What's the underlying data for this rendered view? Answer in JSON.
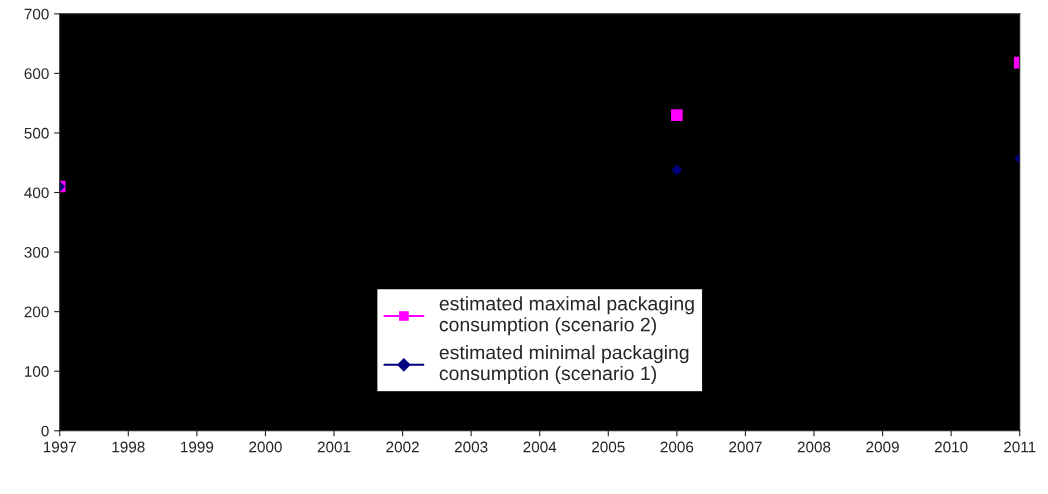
{
  "chart_data": {
    "type": "scatter",
    "x": [
      1997,
      2006,
      2011
    ],
    "series": [
      {
        "name": "estimated maximal packaging\nconsumption (scenario 2)",
        "color": "#ff00ff",
        "marker": "square",
        "values": [
          410,
          530,
          618
        ]
      },
      {
        "name": "estimated minimal packaging\nconsumption (scenario 1)",
        "color": "#000080",
        "marker": "diamond",
        "values": [
          410,
          438,
          457
        ]
      }
    ],
    "xlim": [
      1997,
      2011
    ],
    "xticks": [
      1997,
      1998,
      1999,
      2000,
      2001,
      2002,
      2003,
      2004,
      2005,
      2006,
      2007,
      2008,
      2009,
      2010,
      2011
    ],
    "ylim": [
      0,
      700
    ],
    "yticks": [
      0,
      100,
      200,
      300,
      400,
      500,
      600,
      700
    ],
    "grid": false,
    "legend": "bottom"
  }
}
